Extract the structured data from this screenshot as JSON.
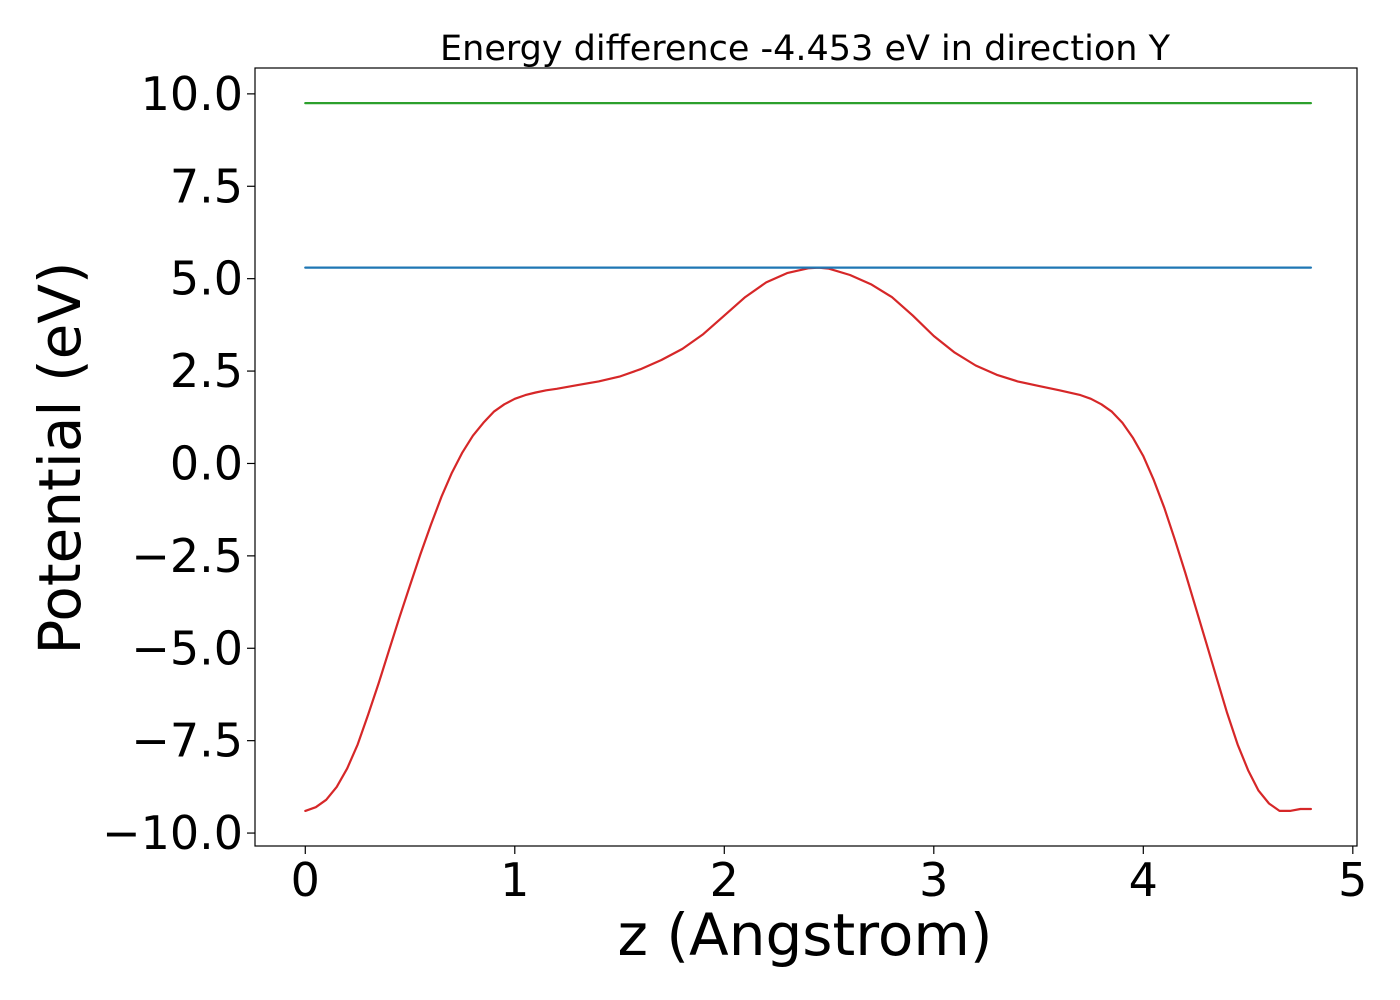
{
  "chart_data": {
    "type": "line",
    "title": "Energy difference -4.453 eV in direction Y",
    "xlabel": "z (Angstrom)",
    "ylabel": "Potential (eV)",
    "xlim": [
      -0.24,
      5.02
    ],
    "ylim": [
      -10.35,
      10.7
    ],
    "x_ticks": [
      0,
      1,
      2,
      3,
      4,
      5
    ],
    "x_tick_labels": [
      "0",
      "1",
      "2",
      "3",
      "4",
      "5"
    ],
    "y_ticks": [
      -10,
      -7.5,
      -5,
      -2.5,
      0,
      2.5,
      5,
      7.5,
      10
    ],
    "y_tick_labels": [
      "−10.0",
      "−7.5",
      "−5.0",
      "−2.5",
      "0.0",
      "2.5",
      "5.0",
      "7.5",
      "10.0"
    ],
    "grid": false,
    "series": [
      {
        "color": "#d62728",
        "x": [
          0.0,
          0.05,
          0.1,
          0.15,
          0.2,
          0.25,
          0.3,
          0.35,
          0.4,
          0.45,
          0.5,
          0.55,
          0.6,
          0.65,
          0.7,
          0.75,
          0.8,
          0.85,
          0.9,
          0.95,
          1.0,
          1.05,
          1.1,
          1.15,
          1.2,
          1.3,
          1.4,
          1.5,
          1.6,
          1.7,
          1.8,
          1.9,
          2.0,
          2.1,
          2.2,
          2.3,
          2.4,
          2.45,
          2.5,
          2.6,
          2.7,
          2.8,
          2.9,
          3.0,
          3.1,
          3.2,
          3.3,
          3.4,
          3.5,
          3.6,
          3.7,
          3.75,
          3.8,
          3.85,
          3.9,
          3.95,
          4.0,
          4.05,
          4.1,
          4.15,
          4.2,
          4.25,
          4.3,
          4.35,
          4.4,
          4.45,
          4.5,
          4.55,
          4.6,
          4.65,
          4.7,
          4.75,
          4.8
        ],
        "y": [
          -9.4,
          -9.3,
          -9.1,
          -8.75,
          -8.25,
          -7.6,
          -6.8,
          -5.95,
          -5.05,
          -4.15,
          -3.3,
          -2.45,
          -1.65,
          -0.9,
          -0.25,
          0.3,
          0.75,
          1.1,
          1.4,
          1.6,
          1.75,
          1.85,
          1.92,
          1.98,
          2.02,
          2.12,
          2.22,
          2.35,
          2.55,
          2.8,
          3.1,
          3.5,
          4.0,
          4.5,
          4.9,
          5.15,
          5.28,
          5.3,
          5.27,
          5.1,
          4.85,
          4.5,
          4.0,
          3.45,
          3.0,
          2.65,
          2.4,
          2.22,
          2.1,
          1.98,
          1.85,
          1.75,
          1.6,
          1.4,
          1.1,
          0.7,
          0.2,
          -0.45,
          -1.2,
          -2.05,
          -2.95,
          -3.9,
          -4.85,
          -5.8,
          -6.75,
          -7.6,
          -8.3,
          -8.85,
          -9.2,
          -9.4,
          -9.4,
          -9.35,
          -9.35
        ]
      },
      {
        "color": "#1f77b4",
        "x": [
          0.0,
          4.8
        ],
        "y": [
          5.3,
          5.3
        ]
      },
      {
        "color": "#2ca02c",
        "x": [
          0.0,
          4.8
        ],
        "y": [
          9.75,
          9.75
        ]
      }
    ]
  }
}
